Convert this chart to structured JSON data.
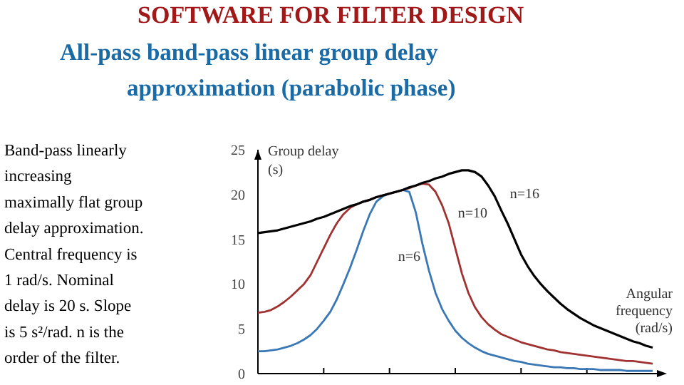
{
  "chart_data": {
    "type": "line",
    "title": "SOFTWARE FOR FILTER DESIGN",
    "subtitle": "All-pass band-pass linear group delay\napproximation (parabolic phase)",
    "ylabel": "Group delay\n(s)",
    "xlabel": "Angular\nfrequency\n(rad/s)",
    "annotations": [
      "Band-pass linearly\nincreasing\nmaximally flat group\ndelay approximation.\nCentral frequency is\n1 rad/s. Nominal\ndelay is 20 s. Slope\nis 5 s²/rad. n is the\norder of the filter."
    ],
    "categories": [
      null,
      null,
      null,
      null,
      null,
      null,
      null,
      null,
      null,
      null,
      null,
      null,
      null,
      null,
      null,
      null,
      null,
      null,
      null,
      null,
      null,
      null,
      null,
      null,
      null,
      null,
      null,
      null,
      null,
      null,
      null,
      null,
      null,
      null,
      null,
      null,
      null,
      null,
      null,
      null,
      null,
      null,
      null,
      null,
      null,
      null,
      null,
      null,
      null,
      null,
      null,
      null,
      null,
      null,
      null,
      null,
      null,
      null,
      null,
      null,
      null
    ],
    "ylim": [
      0,
      25
    ],
    "yticks": [
      0,
      5,
      10,
      15,
      20,
      25
    ],
    "marker": "none",
    "line_style": "solid",
    "series": [
      {
        "name": "n=6",
        "color": "#3a78b5",
        "values": [
          2.5,
          2.5,
          2.6,
          2.7,
          2.9,
          3.1,
          3.4,
          3.8,
          4.3,
          5.0,
          5.9,
          6.9,
          8.3,
          10.0,
          11.8,
          13.8,
          15.9,
          17.8,
          19.2,
          19.8,
          20.1,
          20.3,
          20.5,
          20.3,
          18.0,
          14.5,
          11.5,
          9.0,
          7.2,
          5.9,
          4.8,
          4.0,
          3.4,
          2.9,
          2.5,
          2.2,
          2.0,
          1.8,
          1.6,
          1.4,
          1.3,
          1.1,
          1.0,
          0.9,
          0.8,
          0.7,
          0.7,
          0.6,
          0.6,
          0.5,
          0.5,
          0.5,
          0.4,
          0.4,
          0.4,
          0.4,
          0.3,
          0.3,
          0.3,
          0.3,
          0.3
        ]
      },
      {
        "name": "n=10",
        "color": "#a03232",
        "values": [
          6.8,
          6.9,
          7.1,
          7.5,
          8.0,
          8.6,
          9.3,
          10.0,
          11.0,
          12.5,
          14.0,
          15.5,
          16.8,
          17.8,
          18.5,
          18.9,
          19.2,
          19.4,
          19.7,
          19.9,
          20.1,
          20.3,
          20.5,
          20.7,
          21.0,
          21.2,
          21.1,
          20.3,
          18.8,
          16.8,
          14.0,
          11.2,
          9.0,
          7.4,
          6.3,
          5.5,
          4.9,
          4.4,
          4.1,
          3.8,
          3.5,
          3.3,
          3.1,
          2.9,
          2.7,
          2.6,
          2.4,
          2.3,
          2.2,
          2.1,
          2.0,
          1.9,
          1.8,
          1.7,
          1.6,
          1.5,
          1.4,
          1.4,
          1.3,
          1.2,
          1.1
        ]
      },
      {
        "name": "n=16",
        "color": "#000000",
        "values": [
          15.7,
          15.8,
          15.9,
          16.0,
          16.2,
          16.4,
          16.6,
          16.8,
          17.0,
          17.3,
          17.5,
          17.8,
          18.1,
          18.4,
          18.7,
          18.9,
          19.2,
          19.4,
          19.7,
          19.9,
          20.1,
          20.3,
          20.5,
          20.8,
          21.0,
          21.3,
          21.5,
          21.8,
          22.0,
          22.3,
          22.5,
          22.7,
          22.7,
          22.5,
          22.0,
          21.0,
          19.8,
          18.2,
          16.7,
          15.0,
          13.3,
          12.0,
          10.9,
          10.0,
          9.2,
          8.5,
          7.8,
          7.2,
          6.7,
          6.2,
          5.8,
          5.4,
          5.1,
          4.8,
          4.5,
          4.2,
          3.9,
          3.6,
          3.4,
          3.1,
          2.9
        ]
      }
    ]
  }
}
